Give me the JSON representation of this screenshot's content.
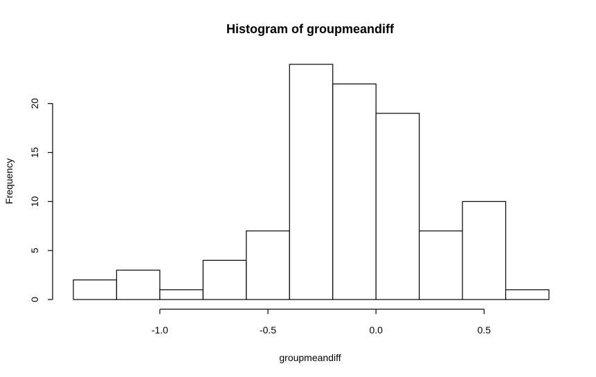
{
  "chart_data": {
    "type": "bar",
    "title": "Histogram of groupmeandiff",
    "xlabel": "groupmeandiff",
    "ylabel": "Frequency",
    "bin_edges": [
      -1.4,
      -1.2,
      -1.0,
      -0.8,
      -0.6,
      -0.4,
      -0.2,
      0.0,
      0.2,
      0.4,
      0.6,
      0.8
    ],
    "values": [
      2,
      3,
      1,
      4,
      7,
      24,
      22,
      19,
      7,
      10,
      1
    ],
    "xticks": [
      -1.0,
      -0.5,
      0.0,
      0.5
    ],
    "xtick_labels": [
      "-1.0",
      "-0.5",
      "0.0",
      "0.5"
    ],
    "yticks": [
      0,
      5,
      10,
      15,
      20
    ],
    "ytick_labels": [
      "0",
      "5",
      "10",
      "15",
      "20"
    ],
    "xlim": [
      -1.4,
      0.8
    ],
    "ylim": [
      0,
      24
    ],
    "grid": false,
    "bar_fill": "#ffffff",
    "bar_stroke": "#000000"
  }
}
